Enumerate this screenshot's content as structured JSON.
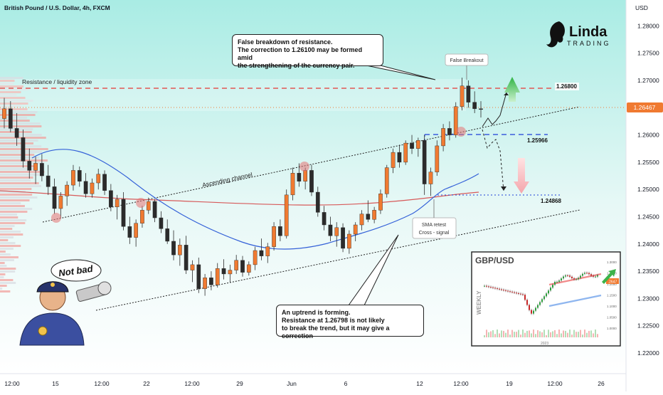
{
  "chart_data": {
    "type": "candlestick",
    "title": "British Pound / U.S. Dollar, 4h, FXCM",
    "currency": "USD",
    "ylim": [
      1.2175,
      1.283
    ],
    "y_ticks": [
      1.28,
      1.275,
      1.27,
      1.265,
      1.26,
      1.255,
      1.25,
      1.245,
      1.24,
      1.235,
      1.23,
      1.225,
      1.22
    ],
    "x_ticks": [
      "12:00",
      "15",
      "12:00",
      "22",
      "12:00",
      "29",
      "Jun",
      "6",
      "12",
      "12:00",
      "19",
      "12:00",
      "26"
    ],
    "last_price": "1.26467",
    "levels": [
      {
        "label": "1.26800",
        "value": 1.268,
        "color": "#e53935",
        "style": "dashed"
      },
      {
        "label": "1.25966",
        "value": 1.25966,
        "color": "#1e3fd8",
        "style": "dashed"
      },
      {
        "label": "1.24868",
        "value": 1.24868,
        "color": "#1e3fd8",
        "style": "dotted"
      }
    ],
    "annotations": {
      "zone": "Resistance / liquidity zone",
      "channel": "Ascending channel",
      "false_breakout": "False Breakout",
      "sma_retest": [
        "SMA retest",
        "Cross - signal"
      ]
    },
    "callouts": {
      "top": [
        "False breakdown of resistance.",
        "The correction to 1.26100 may be formed amid",
        "the strengthening of the currency pair."
      ],
      "bottom": [
        "An uptrend is forming.",
        "Resistance at 1.26798 is not likely",
        "to break the trend, but it may give a correction"
      ]
    },
    "candles": [
      [
        1.263,
        1.2668,
        1.2612,
        1.2648
      ],
      [
        1.2648,
        1.2662,
        1.2605,
        1.2612
      ],
      [
        1.2612,
        1.264,
        1.258,
        1.2595
      ],
      [
        1.2595,
        1.261,
        1.254,
        1.2552
      ],
      [
        1.2552,
        1.2575,
        1.252,
        1.2535
      ],
      [
        1.2535,
        1.256,
        1.251,
        1.2548
      ],
      [
        1.2548,
        1.2565,
        1.2515,
        1.2525
      ],
      [
        1.2525,
        1.2545,
        1.249,
        1.2505
      ],
      [
        1.2505,
        1.252,
        1.2455,
        1.2465
      ],
      [
        1.2465,
        1.2495,
        1.2448,
        1.2488
      ],
      [
        1.2488,
        1.2515,
        1.247,
        1.2508
      ],
      [
        1.2508,
        1.2545,
        1.2498,
        1.2535
      ],
      [
        1.2535,
        1.2542,
        1.2505,
        1.2515
      ],
      [
        1.2515,
        1.253,
        1.2485,
        1.2492
      ],
      [
        1.2492,
        1.252,
        1.2485,
        1.2512
      ],
      [
        1.2512,
        1.2538,
        1.25,
        1.2528
      ],
      [
        1.2528,
        1.2535,
        1.249,
        1.2498
      ],
      [
        1.2498,
        1.251,
        1.246,
        1.2468
      ],
      [
        1.2468,
        1.249,
        1.2445,
        1.2482
      ],
      [
        1.2482,
        1.2495,
        1.2425,
        1.2432
      ],
      [
        1.2432,
        1.245,
        1.24,
        1.2412
      ],
      [
        1.2412,
        1.2445,
        1.2395,
        1.2438
      ],
      [
        1.2438,
        1.247,
        1.243,
        1.2462
      ],
      [
        1.2462,
        1.2485,
        1.2455,
        1.2478
      ],
      [
        1.2478,
        1.2482,
        1.244,
        1.2448
      ],
      [
        1.2448,
        1.246,
        1.242,
        1.2428
      ],
      [
        1.2428,
        1.2445,
        1.24,
        1.2405
      ],
      [
        1.2405,
        1.2425,
        1.237,
        1.238
      ],
      [
        1.238,
        1.241,
        1.236,
        1.2398
      ],
      [
        1.2398,
        1.2415,
        1.2345,
        1.2352
      ],
      [
        1.2352,
        1.237,
        1.233,
        1.2362
      ],
      [
        1.2362,
        1.2375,
        1.231,
        1.2318
      ],
      [
        1.2318,
        1.2345,
        1.2305,
        1.2338
      ],
      [
        1.2338,
        1.235,
        1.2315,
        1.2325
      ],
      [
        1.2325,
        1.2365,
        1.232,
        1.2355
      ],
      [
        1.2355,
        1.2372,
        1.2335,
        1.2345
      ],
      [
        1.2345,
        1.2362,
        1.233,
        1.2352
      ],
      [
        1.2352,
        1.238,
        1.2345,
        1.237
      ],
      [
        1.237,
        1.2378,
        1.234,
        1.2348
      ],
      [
        1.2348,
        1.2368,
        1.2342,
        1.2362
      ],
      [
        1.2362,
        1.2395,
        1.2352,
        1.2388
      ],
      [
        1.2388,
        1.241,
        1.237,
        1.2378
      ],
      [
        1.2378,
        1.2402,
        1.2365,
        1.2395
      ],
      [
        1.2395,
        1.244,
        1.2388,
        1.2432
      ],
      [
        1.2432,
        1.2445,
        1.2405,
        1.2415
      ],
      [
        1.2415,
        1.25,
        1.241,
        1.249
      ],
      [
        1.249,
        1.254,
        1.248,
        1.253
      ],
      [
        1.253,
        1.2548,
        1.2505,
        1.2515
      ],
      [
        1.2515,
        1.254,
        1.25,
        1.2535
      ],
      [
        1.2535,
        1.2545,
        1.2488,
        1.2495
      ],
      [
        1.2495,
        1.2505,
        1.245,
        1.2458
      ],
      [
        1.2458,
        1.247,
        1.2425,
        1.2435
      ],
      [
        1.2435,
        1.245,
        1.2405,
        1.2415
      ],
      [
        1.2415,
        1.244,
        1.2395,
        1.243
      ],
      [
        1.243,
        1.2438,
        1.2385,
        1.2392
      ],
      [
        1.2392,
        1.2425,
        1.2382,
        1.2418
      ],
      [
        1.2418,
        1.244,
        1.2405,
        1.2435
      ],
      [
        1.2435,
        1.2462,
        1.2425,
        1.2455
      ],
      [
        1.2455,
        1.248,
        1.244,
        1.2445
      ],
      [
        1.2445,
        1.2468,
        1.2438,
        1.2462
      ],
      [
        1.2462,
        1.25,
        1.2455,
        1.2492
      ],
      [
        1.2492,
        1.2545,
        1.2485,
        1.254
      ],
      [
        1.254,
        1.2575,
        1.253,
        1.2568
      ],
      [
        1.2568,
        1.2582,
        1.254,
        1.255
      ],
      [
        1.255,
        1.259,
        1.2545,
        1.2585
      ],
      [
        1.2585,
        1.26,
        1.2565,
        1.2575
      ],
      [
        1.2575,
        1.2595,
        1.256,
        1.259
      ],
      [
        1.259,
        1.26,
        1.249,
        1.251
      ],
      [
        1.251,
        1.254,
        1.2488,
        1.2532
      ],
      [
        1.2532,
        1.259,
        1.2525,
        1.258
      ],
      [
        1.258,
        1.262,
        1.257,
        1.2612
      ],
      [
        1.2612,
        1.2625,
        1.259,
        1.26
      ],
      [
        1.26,
        1.266,
        1.2595,
        1.2652
      ],
      [
        1.2652,
        1.2705,
        1.2645,
        1.269
      ],
      [
        1.269,
        1.27,
        1.265,
        1.266
      ],
      [
        1.266,
        1.268,
        1.264,
        1.2648
      ],
      [
        1.2648,
        1.2662,
        1.2632,
        1.2647
      ]
    ]
  },
  "inset": {
    "title": "GBP/USD",
    "axis_label": "WEEKLY",
    "year": "2023",
    "last": ".2647",
    "ticks": [
      "1.3000",
      "1.2500",
      "1.2000",
      "1.1500",
      "1.1000",
      "1.0500",
      "1.0000"
    ]
  },
  "logo": {
    "name": "Linda",
    "sub": "TRADING"
  },
  "cartoon": {
    "speech": "Not bad"
  },
  "colors": {
    "up": "#f07a31",
    "down": "#2b2b2b",
    "resistance": "#e53935",
    "support": "#1e3fd8",
    "sma_fast": "#3461d8",
    "sma_slow": "#d75a5a"
  }
}
